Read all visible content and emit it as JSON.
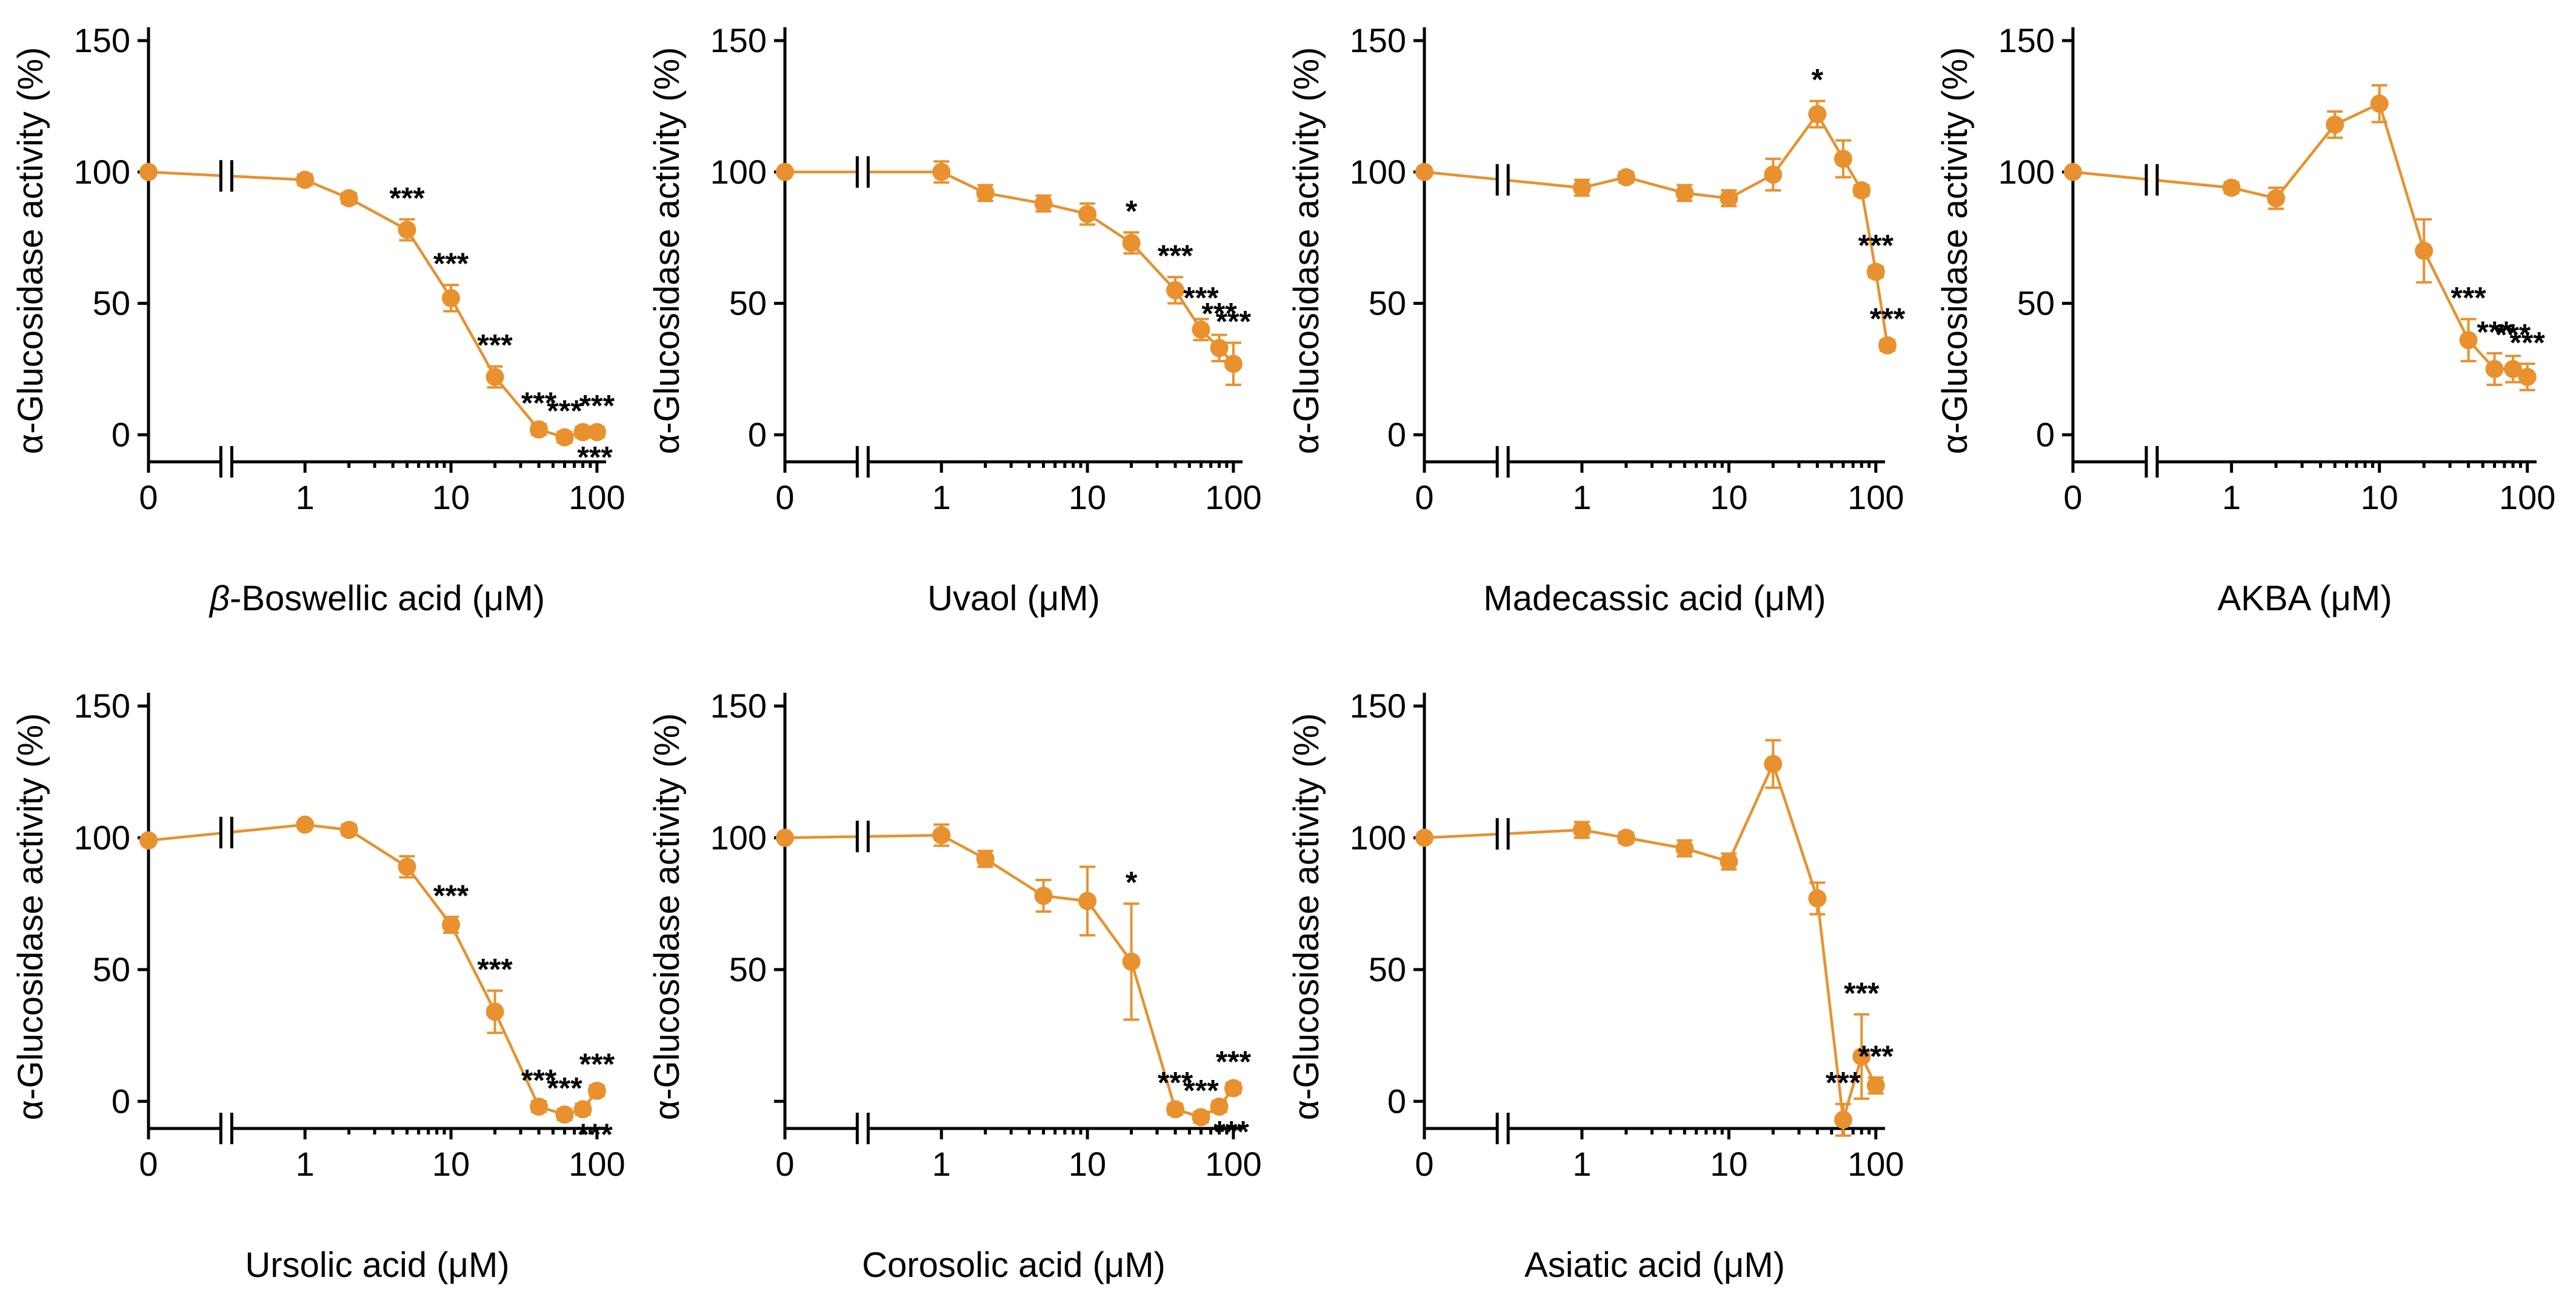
{
  "colors": {
    "series": "#E8912E",
    "axis": "#000000",
    "text": "#000000",
    "background": "#ffffff"
  },
  "chart_data": [
    {
      "type": "line",
      "ylabel": "α-Glucosidase activity (%)",
      "xlabel_prefix": "β",
      "xlabel_main": "-Boswellic acid (μM)",
      "ylim": [
        -5,
        150
      ],
      "yticks": [
        "0",
        "50",
        "100",
        "150"
      ],
      "xticks": [
        "0",
        "1",
        "10",
        "100"
      ],
      "x_break": true,
      "y_break": false,
      "x": [
        0,
        1,
        2,
        5,
        10,
        20,
        40,
        60,
        80,
        100
      ],
      "y": [
        100,
        97,
        90,
        78,
        52,
        22,
        2,
        -1,
        1,
        1
      ],
      "err": [
        0,
        2,
        2,
        4,
        5,
        4,
        2,
        2,
        2,
        2
      ],
      "significance": [
        "",
        "",
        "",
        "***",
        "***",
        "***",
        "***",
        "***",
        "***",
        "***"
      ]
    },
    {
      "type": "line",
      "ylabel": "α-Glucosidase activity (%)",
      "xlabel_prefix": "",
      "xlabel_main": "Uvaol (μM)",
      "ylim": [
        -5,
        150
      ],
      "yticks": [
        "0",
        "50",
        "100",
        "150"
      ],
      "xticks": [
        "0",
        "1",
        "10",
        "100"
      ],
      "x_break": true,
      "y_break": false,
      "x": [
        0,
        1,
        2,
        5,
        10,
        20,
        40,
        60,
        80,
        100
      ],
      "y": [
        100,
        100,
        92,
        88,
        84,
        73,
        55,
        40,
        33,
        27
      ],
      "err": [
        0,
        4,
        3,
        3,
        4,
        4,
        5,
        4,
        5,
        8
      ],
      "significance": [
        "",
        "",
        "",
        "",
        "",
        "*",
        "***",
        "***",
        "***",
        "***"
      ]
    },
    {
      "type": "line",
      "ylabel": "α-Glucosidase activity (%)",
      "xlabel_prefix": "",
      "xlabel_main": "Madecassic acid (μM)",
      "ylim": [
        -5,
        150
      ],
      "yticks": [
        "0",
        "50",
        "100",
        "150"
      ],
      "xticks": [
        "0",
        "1",
        "10",
        "100"
      ],
      "x_break": true,
      "y_break": false,
      "x": [
        0,
        1,
        2,
        5,
        10,
        20,
        40,
        60,
        80,
        100,
        120
      ],
      "y": [
        100,
        94,
        98,
        92,
        90,
        99,
        122,
        105,
        93,
        62,
        34
      ],
      "err": [
        0,
        3,
        2,
        3,
        3,
        6,
        5,
        7,
        2,
        2,
        2
      ],
      "significance": [
        "",
        "",
        "",
        "",
        "",
        "",
        "*",
        "",
        "",
        "***",
        "***"
      ]
    },
    {
      "type": "line",
      "ylabel": "α-Glucosidase activity (%)",
      "xlabel_prefix": "",
      "xlabel_main": "AKBA (μM)",
      "ylim": [
        -5,
        150
      ],
      "yticks": [
        "0",
        "50",
        "100",
        "150"
      ],
      "xticks": [
        "0",
        "1",
        "10",
        "100"
      ],
      "x_break": true,
      "y_break": false,
      "x": [
        0,
        1,
        2,
        5,
        10,
        20,
        40,
        60,
        80,
        100
      ],
      "y": [
        100,
        94,
        90,
        118,
        126,
        70,
        36,
        25,
        25,
        22
      ],
      "err": [
        0,
        2,
        4,
        5,
        7,
        12,
        8,
        6,
        5,
        5
      ],
      "significance": [
        "",
        "",
        "",
        "",
        "",
        "",
        "***",
        "***",
        "***",
        "***"
      ]
    },
    {
      "type": "line",
      "ylabel": "α-Glucosidase activity (%)",
      "xlabel_prefix": "",
      "xlabel_main": "Ursolic acid (μM)",
      "ylim": [
        -5,
        150
      ],
      "yticks": [
        "0",
        "50",
        "100",
        "150"
      ],
      "xticks": [
        "0",
        "1",
        "10",
        "100"
      ],
      "x_break": true,
      "y_break": false,
      "x": [
        0,
        1,
        2,
        5,
        10,
        20,
        40,
        60,
        80,
        100
      ],
      "y": [
        99,
        105,
        103,
        89,
        67,
        34,
        -2,
        -5,
        -3,
        4
      ],
      "err": [
        0,
        1,
        2,
        4,
        3,
        8,
        2,
        2,
        2,
        2
      ],
      "significance": [
        "",
        "",
        "",
        "",
        "***",
        "***",
        "***",
        "***",
        "***",
        "***"
      ]
    },
    {
      "type": "line",
      "ylabel": "α-Glucosidase activity (%)",
      "xlabel_prefix": "",
      "xlabel_main": "Corosolic acid (μM)",
      "ylim": [
        -5,
        150
      ],
      "yticks": [
        "",
        "50",
        "100",
        "150"
      ],
      "xticks": [
        "0",
        "1",
        "10",
        "100"
      ],
      "x_break": true,
      "y_break": false,
      "x": [
        0,
        1,
        2,
        5,
        10,
        20,
        40,
        60,
        80,
        100
      ],
      "y": [
        100,
        101,
        92,
        78,
        76,
        53,
        -3,
        -6,
        -2,
        5
      ],
      "err": [
        0,
        4,
        3,
        6,
        13,
        22,
        2,
        2,
        2,
        2
      ],
      "significance": [
        "",
        "",
        "",
        "",
        "",
        "*",
        "***",
        "***",
        "***",
        "***"
      ]
    },
    {
      "type": "line",
      "ylabel": "α-Glucosidase activity (%)",
      "xlabel_prefix": "",
      "xlabel_main": "Asiatic acid (μM)",
      "ylim": [
        -5,
        150
      ],
      "yticks": [
        "0",
        "50",
        "100",
        "150"
      ],
      "xticks": [
        "0",
        "1",
        "10",
        "100"
      ],
      "x_break": true,
      "y_break": false,
      "x": [
        0,
        1,
        2,
        5,
        10,
        20,
        40,
        60,
        80,
        100
      ],
      "y": [
        100,
        103,
        100,
        96,
        91,
        128,
        77,
        -7,
        17,
        6
      ],
      "err": [
        0,
        3,
        2,
        3,
        3,
        9,
        6,
        6,
        16,
        3
      ],
      "significance": [
        "",
        "",
        "",
        "",
        "",
        "",
        "",
        "***",
        "***",
        "***"
      ]
    }
  ]
}
